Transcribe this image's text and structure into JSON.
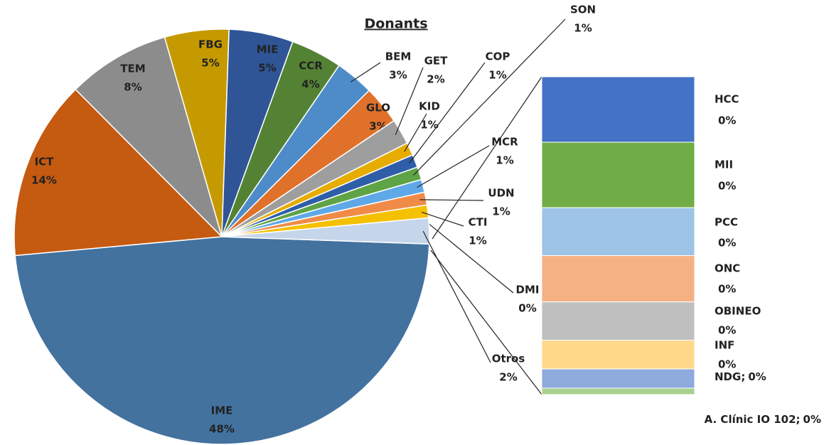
{
  "chart_data": [
    {
      "type": "pie",
      "title": "Donants",
      "categories": [
        "IME",
        "ICT",
        "TEM",
        "FBG",
        "MIE",
        "CCR",
        "BEM",
        "GLO",
        "GET",
        "KID",
        "COP",
        "SON",
        "MCR",
        "UDN",
        "CTI",
        "DMI",
        "Otros"
      ],
      "values": [
        48,
        14,
        8,
        5,
        5,
        4,
        3,
        3,
        2,
        1,
        1,
        1,
        1,
        1,
        1,
        0,
        2
      ],
      "value_labels": [
        "48%",
        "14%",
        "8%",
        "5%",
        "5%",
        "4%",
        "3%",
        "3%",
        "2%",
        "1%",
        "1%",
        "1%",
        "1%",
        "1%",
        "1%",
        "0%",
        "2%"
      ],
      "colors": [
        "#43729f",
        "#c55a11",
        "#8c8c8c",
        "#c59a00",
        "#2f5597",
        "#548235",
        "#4e8cc9",
        "#e0712a",
        "#9e9e9e",
        "#e6ac00",
        "#2f5ea8",
        "#5ea346",
        "#5fa8e8",
        "#f08b47",
        "#f5c000",
        "#a5a5a5",
        "#c5d5ea"
      ]
    },
    {
      "type": "stacked-bar",
      "categories": [
        "HCC",
        "MII",
        "PCC",
        "ONC",
        "OBINEO",
        "INF",
        "NDG;",
        "A. Clínic IO 102;"
      ],
      "values": [
        0.41,
        0.41,
        0.3,
        0.29,
        0.24,
        0.18,
        0.12,
        0.04
      ],
      "value_labels": [
        "0%",
        "0%",
        "0%",
        "0%",
        "0%",
        "0%",
        "0%",
        "0%"
      ],
      "colors": [
        "#4472c4",
        "#70ad47",
        "#9dc3e6",
        "#f4b183",
        "#bfbfbf",
        "#ffd98a",
        "#8faadc",
        "#a9d18e"
      ]
    }
  ]
}
